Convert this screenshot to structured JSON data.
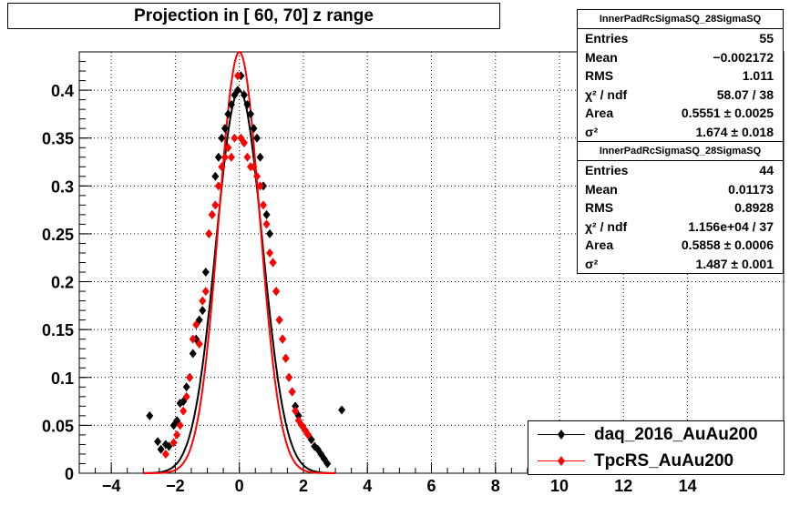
{
  "title": "Projection in [  60,  70] z range",
  "chart_data": {
    "type": "scatter",
    "xlim": [
      -5,
      17
    ],
    "ylim": [
      0,
      0.44
    ],
    "x_ticks": [
      -4,
      -2,
      0,
      2,
      4,
      6,
      8,
      10,
      12,
      14
    ],
    "x_tick_labels": [
      "−4",
      "−2",
      "0",
      "2",
      "4",
      "6",
      "8",
      "10",
      "12",
      "14"
    ],
    "y_ticks": [
      0,
      0.05,
      0.1,
      0.15,
      0.2,
      0.25,
      0.3,
      0.35,
      0.4
    ],
    "y_tick_labels": [
      "0",
      "0.05",
      "0.1",
      "0.15",
      "0.2",
      "0.25",
      "0.3",
      "0.35",
      "0.4"
    ],
    "grid": true,
    "legend_position": "bottom-right",
    "series": [
      {
        "name": "daq_2016_AuAu200",
        "color": "#000000",
        "marker": "diamond",
        "points": [
          [
            -2.8,
            0.06
          ],
          [
            -2.55,
            0.033
          ],
          [
            -2.45,
            0.025
          ],
          [
            -2.3,
            0.03
          ],
          [
            -2.2,
            0.028
          ],
          [
            -2.05,
            0.05
          ],
          [
            -1.95,
            0.055
          ],
          [
            -1.85,
            0.073
          ],
          [
            -1.75,
            0.075
          ],
          [
            -1.65,
            0.09
          ],
          [
            -1.55,
            0.1
          ],
          [
            -1.45,
            0.125
          ],
          [
            -1.35,
            0.14
          ],
          [
            -1.25,
            0.16
          ],
          [
            -1.15,
            0.17
          ],
          [
            -1.05,
            0.21
          ],
          [
            -0.95,
            0.25
          ],
          [
            -0.85,
            0.27
          ],
          [
            -0.75,
            0.31
          ],
          [
            -0.65,
            0.33
          ],
          [
            -0.55,
            0.35
          ],
          [
            -0.45,
            0.36
          ],
          [
            -0.35,
            0.375
          ],
          [
            -0.25,
            0.385
          ],
          [
            -0.15,
            0.395
          ],
          [
            -0.05,
            0.4
          ],
          [
            0.05,
            0.415
          ],
          [
            0.15,
            0.395
          ],
          [
            0.25,
            0.385
          ],
          [
            0.35,
            0.375
          ],
          [
            0.45,
            0.36
          ],
          [
            0.55,
            0.35
          ],
          [
            0.65,
            0.33
          ],
          [
            0.75,
            0.3
          ],
          [
            0.85,
            0.27
          ],
          [
            0.95,
            0.25
          ],
          [
            1.05,
            0.22
          ],
          [
            1.15,
            0.19
          ],
          [
            1.25,
            0.16
          ],
          [
            1.35,
            0.14
          ],
          [
            1.45,
            0.12
          ],
          [
            1.55,
            0.1
          ],
          [
            1.65,
            0.085
          ],
          [
            1.75,
            0.07
          ],
          [
            1.85,
            0.06
          ],
          [
            1.95,
            0.05
          ],
          [
            2.05,
            0.045
          ],
          [
            2.15,
            0.04
          ],
          [
            2.25,
            0.035
          ],
          [
            2.35,
            0.028
          ],
          [
            2.45,
            0.025
          ],
          [
            2.55,
            0.02
          ],
          [
            2.65,
            0.015
          ],
          [
            2.75,
            0.01
          ],
          [
            3.2,
            0.066
          ]
        ]
      },
      {
        "name": "TpcRS_AuAu200",
        "color": "#ff0000",
        "marker": "diamond",
        "points": [
          [
            -2.3,
            0.02
          ],
          [
            -2.05,
            0.032
          ],
          [
            -1.95,
            0.04
          ],
          [
            -1.85,
            0.05
          ],
          [
            -1.75,
            0.065
          ],
          [
            -1.65,
            0.08
          ],
          [
            -1.55,
            0.1
          ],
          [
            -1.45,
            0.14
          ],
          [
            -1.35,
            0.155
          ],
          [
            -1.25,
            0.135
          ],
          [
            -1.15,
            0.18
          ],
          [
            -1.05,
            0.19
          ],
          [
            -0.95,
            0.25
          ],
          [
            -0.85,
            0.27
          ],
          [
            -0.75,
            0.28
          ],
          [
            -0.65,
            0.3
          ],
          [
            -0.55,
            0.32
          ],
          [
            -0.45,
            0.33
          ],
          [
            -0.35,
            0.34
          ],
          [
            -0.25,
            0.33
          ],
          [
            -0.15,
            0.35
          ],
          [
            -0.05,
            0.415
          ],
          [
            0.05,
            0.35
          ],
          [
            0.15,
            0.345
          ],
          [
            0.25,
            0.33
          ],
          [
            0.35,
            0.32
          ],
          [
            0.45,
            0.32
          ],
          [
            0.55,
            0.31
          ],
          [
            0.65,
            0.3
          ],
          [
            0.75,
            0.28
          ],
          [
            0.85,
            0.26
          ],
          [
            0.95,
            0.23
          ],
          [
            1.05,
            0.22
          ],
          [
            1.15,
            0.19
          ],
          [
            1.25,
            0.16
          ],
          [
            1.35,
            0.14
          ],
          [
            1.45,
            0.12
          ],
          [
            1.55,
            0.1
          ],
          [
            1.65,
            0.085
          ],
          [
            1.75,
            0.065
          ],
          [
            1.85,
            0.055
          ],
          [
            1.95,
            0.05
          ],
          [
            2.05,
            0.045
          ],
          [
            2.15,
            0.04
          ]
        ]
      }
    ],
    "fits": [
      {
        "series": "daq_2016_AuAu200",
        "color": "#000000",
        "mean": -0.002172,
        "sigma": 0.72,
        "peak": 0.4
      },
      {
        "series": "TpcRS_AuAu200",
        "color": "#ff0000",
        "mean": 0.0,
        "sigma": 0.64,
        "peak": 0.44
      }
    ]
  },
  "stats": [
    {
      "title": "InnerPadRcSigmaSQ_28SigmaSQ",
      "rows": [
        {
          "label": "Entries",
          "value": "55"
        },
        {
          "label": "Mean",
          "value": "−0.002172"
        },
        {
          "label": "RMS",
          "value": "1.011"
        },
        {
          "label": "χ² / ndf",
          "value": "58.07 / 38"
        },
        {
          "label": "Area",
          "value": "0.5551 ± 0.0025"
        },
        {
          "label": "σ²",
          "value": "1.674 ± 0.018"
        }
      ]
    },
    {
      "title": "InnerPadRcSigmaSQ_28SigmaSQ",
      "rows": [
        {
          "label": "Entries",
          "value": "44"
        },
        {
          "label": "Mean",
          "value": "0.01173"
        },
        {
          "label": "RMS",
          "value": "0.8928"
        },
        {
          "label": "χ² / ndf",
          "value": "1.156e+04 / 37"
        },
        {
          "label": "Area",
          "value": "0.5858 ± 0.0006"
        },
        {
          "label": "σ²",
          "value": "1.487 ± 0.001"
        }
      ]
    }
  ],
  "legend": [
    {
      "label": "daq_2016_AuAu200",
      "color": "#000000"
    },
    {
      "label": "TpcRS_AuAu200",
      "color": "#ff0000"
    }
  ]
}
